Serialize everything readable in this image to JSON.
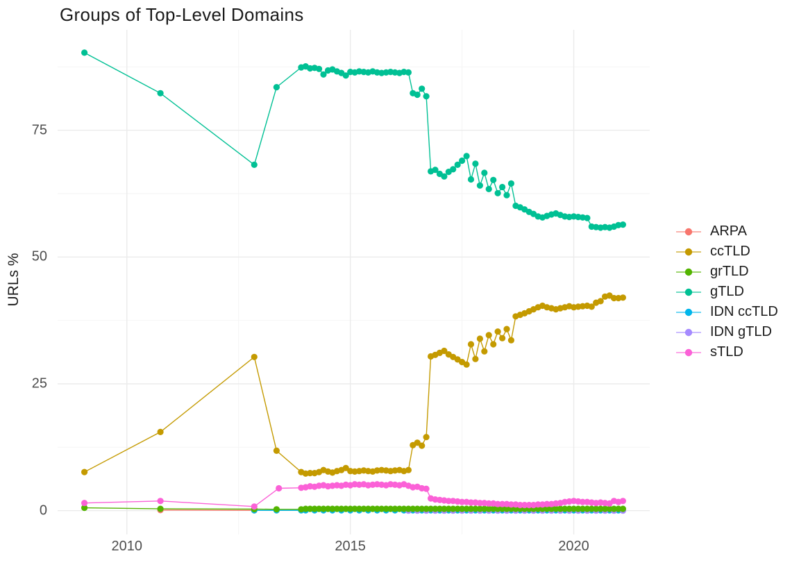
{
  "page": {
    "background": "#ffffff"
  },
  "chart_data": {
    "type": "scatter-line",
    "title": "Groups of Top-Level Domains",
    "xlabel": "",
    "ylabel": "URLs %",
    "x_ticks": [
      2010,
      2015,
      2020
    ],
    "x_minor_ticks": [
      2012.5,
      2017.5
    ],
    "y_ticks": [
      0,
      25,
      50,
      75
    ],
    "y_minor_ticks": [
      12.5,
      37.5,
      62.5,
      87.5
    ],
    "xlim": [
      2008.45,
      2021.7
    ],
    "ylim": [
      -4.7,
      94.8
    ],
    "grid": "major+minor on white, no panel border (ggplot theme_minimal)",
    "grid_major_color": "#EBEBEB",
    "grid_minor_color": "#F3F3F3",
    "tick_label_color": "#4d4d4d",
    "text_color": "#1a1a1a",
    "legend_position": "right",
    "draw_order": [
      "ARPA",
      "IDN ccTLD",
      "IDN gTLD",
      "ccTLD",
      "gTLD",
      "grTLD",
      "sTLD"
    ],
    "series": [
      {
        "name": "ARPA",
        "color": "#F8766D",
        "points": [
          [
            2010.75,
            0.1
          ],
          [
            2012.85,
            0.05
          ]
        ]
      },
      {
        "name": "ccTLD",
        "color": "#C49A00",
        "points": [
          [
            2009.05,
            7.6
          ],
          [
            2010.75,
            15.5
          ],
          [
            2012.85,
            30.3
          ],
          [
            2013.35,
            11.8
          ],
          [
            2013.9,
            7.6
          ],
          [
            2014.0,
            7.3
          ],
          [
            2014.1,
            7.4
          ],
          [
            2014.2,
            7.4
          ],
          [
            2014.3,
            7.6
          ],
          [
            2014.4,
            8.0
          ],
          [
            2014.5,
            7.7
          ],
          [
            2014.6,
            7.5
          ],
          [
            2014.7,
            7.8
          ],
          [
            2014.8,
            8.0
          ],
          [
            2014.9,
            8.4
          ],
          [
            2015.0,
            7.8
          ],
          [
            2015.1,
            7.7
          ],
          [
            2015.2,
            7.8
          ],
          [
            2015.3,
            7.9
          ],
          [
            2015.4,
            7.8
          ],
          [
            2015.5,
            7.7
          ],
          [
            2015.6,
            7.9
          ],
          [
            2015.7,
            8.0
          ],
          [
            2015.8,
            7.9
          ],
          [
            2015.9,
            7.8
          ],
          [
            2016.0,
            7.9
          ],
          [
            2016.1,
            8.0
          ],
          [
            2016.2,
            7.8
          ],
          [
            2016.3,
            8.0
          ],
          [
            2016.4,
            12.9
          ],
          [
            2016.5,
            13.4
          ],
          [
            2016.6,
            12.8
          ],
          [
            2016.7,
            14.5
          ],
          [
            2016.8,
            30.4
          ],
          [
            2016.9,
            30.7
          ],
          [
            2017.0,
            31.1
          ],
          [
            2017.1,
            31.5
          ],
          [
            2017.2,
            30.8
          ],
          [
            2017.3,
            30.3
          ],
          [
            2017.4,
            29.8
          ],
          [
            2017.5,
            29.3
          ],
          [
            2017.6,
            28.8
          ],
          [
            2017.7,
            32.8
          ],
          [
            2017.8,
            29.9
          ],
          [
            2017.9,
            33.9
          ],
          [
            2018.0,
            31.4
          ],
          [
            2018.1,
            34.6
          ],
          [
            2018.2,
            32.8
          ],
          [
            2018.3,
            35.3
          ],
          [
            2018.4,
            34.0
          ],
          [
            2018.5,
            35.8
          ],
          [
            2018.6,
            33.6
          ],
          [
            2018.7,
            38.3
          ],
          [
            2018.8,
            38.6
          ],
          [
            2018.9,
            38.9
          ],
          [
            2019.0,
            39.3
          ],
          [
            2019.1,
            39.7
          ],
          [
            2019.2,
            40.1
          ],
          [
            2019.3,
            40.4
          ],
          [
            2019.4,
            40.1
          ],
          [
            2019.5,
            39.9
          ],
          [
            2019.6,
            39.7
          ],
          [
            2019.7,
            39.9
          ],
          [
            2019.8,
            40.1
          ],
          [
            2019.9,
            40.3
          ],
          [
            2020.0,
            40.1
          ],
          [
            2020.1,
            40.2
          ],
          [
            2020.2,
            40.3
          ],
          [
            2020.3,
            40.4
          ],
          [
            2020.4,
            40.2
          ],
          [
            2020.5,
            41.0
          ],
          [
            2020.6,
            41.3
          ],
          [
            2020.7,
            42.2
          ],
          [
            2020.8,
            42.4
          ],
          [
            2020.9,
            41.9
          ],
          [
            2021.0,
            41.9
          ],
          [
            2021.1,
            42.0
          ]
        ]
      },
      {
        "name": "grTLD",
        "color": "#53B400",
        "points": [
          [
            2009.05,
            0.55
          ],
          [
            2010.75,
            0.35
          ],
          [
            2012.85,
            0.3
          ],
          [
            2013.35,
            0.25
          ],
          [
            2013.9,
            0.25
          ]
        ],
        "spans": [
          {
            "x_start": 2014.0,
            "x_end": 2021.1,
            "x_step": 0.1,
            "y": 0.35
          }
        ]
      },
      {
        "name": "gTLD",
        "color": "#00C094",
        "points": [
          [
            2009.05,
            90.3
          ],
          [
            2010.75,
            82.3
          ],
          [
            2012.85,
            68.2
          ],
          [
            2013.35,
            83.5
          ],
          [
            2013.9,
            87.4
          ],
          [
            2014.0,
            87.6
          ],
          [
            2014.1,
            87.2
          ],
          [
            2014.2,
            87.3
          ],
          [
            2014.3,
            87.1
          ],
          [
            2014.4,
            86.0
          ],
          [
            2014.5,
            86.8
          ],
          [
            2014.6,
            87.0
          ],
          [
            2014.7,
            86.6
          ],
          [
            2014.8,
            86.3
          ],
          [
            2014.9,
            85.8
          ],
          [
            2015.0,
            86.5
          ],
          [
            2015.1,
            86.4
          ],
          [
            2015.2,
            86.6
          ],
          [
            2015.3,
            86.5
          ],
          [
            2015.4,
            86.4
          ],
          [
            2015.5,
            86.6
          ],
          [
            2015.6,
            86.4
          ],
          [
            2015.7,
            86.3
          ],
          [
            2015.8,
            86.4
          ],
          [
            2015.9,
            86.5
          ],
          [
            2016.0,
            86.4
          ],
          [
            2016.1,
            86.3
          ],
          [
            2016.2,
            86.5
          ],
          [
            2016.3,
            86.4
          ],
          [
            2016.4,
            82.3
          ],
          [
            2016.5,
            82.0
          ],
          [
            2016.6,
            83.2
          ],
          [
            2016.7,
            81.7
          ],
          [
            2016.8,
            66.9
          ],
          [
            2016.9,
            67.2
          ],
          [
            2017.0,
            66.4
          ],
          [
            2017.1,
            65.9
          ],
          [
            2017.2,
            66.8
          ],
          [
            2017.3,
            67.3
          ],
          [
            2017.4,
            68.2
          ],
          [
            2017.5,
            69.0
          ],
          [
            2017.6,
            69.9
          ],
          [
            2017.7,
            65.3
          ],
          [
            2017.8,
            68.4
          ],
          [
            2017.9,
            64.1
          ],
          [
            2018.0,
            66.6
          ],
          [
            2018.1,
            63.4
          ],
          [
            2018.2,
            65.2
          ],
          [
            2018.3,
            62.6
          ],
          [
            2018.4,
            63.8
          ],
          [
            2018.5,
            62.2
          ],
          [
            2018.6,
            64.5
          ],
          [
            2018.7,
            60.1
          ],
          [
            2018.8,
            59.8
          ],
          [
            2018.9,
            59.4
          ],
          [
            2019.0,
            58.9
          ],
          [
            2019.1,
            58.5
          ],
          [
            2019.2,
            58.0
          ],
          [
            2019.3,
            57.8
          ],
          [
            2019.4,
            58.1
          ],
          [
            2019.5,
            58.4
          ],
          [
            2019.6,
            58.6
          ],
          [
            2019.7,
            58.3
          ],
          [
            2019.8,
            58.0
          ],
          [
            2019.9,
            57.9
          ],
          [
            2020.0,
            58.0
          ],
          [
            2020.1,
            57.9
          ],
          [
            2020.2,
            57.8
          ],
          [
            2020.3,
            57.7
          ],
          [
            2020.4,
            56.0
          ],
          [
            2020.5,
            55.9
          ],
          [
            2020.6,
            55.8
          ],
          [
            2020.7,
            55.9
          ],
          [
            2020.8,
            55.8
          ],
          [
            2020.9,
            56.0
          ],
          [
            2021.0,
            56.3
          ],
          [
            2021.1,
            56.4
          ]
        ]
      },
      {
        "name": "IDN ccTLD",
        "color": "#00B6EB",
        "points": [
          [
            2012.85,
            0.05
          ],
          [
            2013.35,
            0.05
          ],
          [
            2013.9,
            0.05
          ]
        ],
        "spans": [
          {
            "x_start": 2014.0,
            "x_end": 2021.1,
            "x_step": 0.2,
            "y": 0.05
          }
        ]
      },
      {
        "name": "IDN gTLD",
        "color": "#A58AFF",
        "points": [],
        "spans": [
          {
            "x_start": 2016.3,
            "x_end": 2021.1,
            "x_step": 0.2,
            "y": 0.0
          }
        ]
      },
      {
        "name": "sTLD",
        "color": "#FB61D7",
        "points": [
          [
            2009.05,
            1.5
          ],
          [
            2010.75,
            1.9
          ],
          [
            2012.85,
            0.8
          ],
          [
            2013.4,
            4.4
          ],
          [
            2013.9,
            4.5
          ],
          [
            2014.0,
            4.6
          ],
          [
            2014.1,
            4.8
          ],
          [
            2014.2,
            4.7
          ],
          [
            2014.3,
            4.9
          ],
          [
            2014.4,
            5.0
          ],
          [
            2014.5,
            4.8
          ],
          [
            2014.6,
            4.9
          ],
          [
            2014.7,
            5.0
          ],
          [
            2014.8,
            4.9
          ],
          [
            2014.9,
            5.1
          ],
          [
            2015.0,
            5.0
          ],
          [
            2015.1,
            5.2
          ],
          [
            2015.2,
            5.1
          ],
          [
            2015.3,
            5.2
          ],
          [
            2015.4,
            5.0
          ],
          [
            2015.5,
            5.1
          ],
          [
            2015.6,
            5.2
          ],
          [
            2015.7,
            5.1
          ],
          [
            2015.8,
            5.0
          ],
          [
            2015.9,
            5.2
          ],
          [
            2016.0,
            5.1
          ],
          [
            2016.1,
            5.0
          ],
          [
            2016.2,
            5.2
          ],
          [
            2016.3,
            4.9
          ],
          [
            2016.4,
            4.6
          ],
          [
            2016.5,
            4.7
          ],
          [
            2016.6,
            4.4
          ],
          [
            2016.7,
            4.3
          ],
          [
            2016.8,
            2.4
          ],
          [
            2016.9,
            2.2
          ],
          [
            2017.0,
            2.1
          ],
          [
            2017.1,
            2.0
          ],
          [
            2017.2,
            1.9
          ],
          [
            2017.3,
            1.9
          ],
          [
            2017.4,
            1.8
          ],
          [
            2017.5,
            1.7
          ],
          [
            2017.6,
            1.7
          ],
          [
            2017.7,
            1.6
          ],
          [
            2017.8,
            1.6
          ],
          [
            2017.9,
            1.5
          ],
          [
            2018.0,
            1.5
          ],
          [
            2018.1,
            1.4
          ],
          [
            2018.2,
            1.4
          ],
          [
            2018.3,
            1.3
          ],
          [
            2018.4,
            1.3
          ],
          [
            2018.5,
            1.3
          ],
          [
            2018.6,
            1.2
          ],
          [
            2018.7,
            1.2
          ],
          [
            2018.8,
            1.1
          ],
          [
            2018.9,
            1.1
          ],
          [
            2019.0,
            1.1
          ],
          [
            2019.1,
            1.1
          ],
          [
            2019.2,
            1.2
          ],
          [
            2019.3,
            1.2
          ],
          [
            2019.4,
            1.3
          ],
          [
            2019.5,
            1.3
          ],
          [
            2019.6,
            1.4
          ],
          [
            2019.7,
            1.5
          ],
          [
            2019.8,
            1.7
          ],
          [
            2019.9,
            1.8
          ],
          [
            2020.0,
            1.9
          ],
          [
            2020.1,
            1.8
          ],
          [
            2020.2,
            1.7
          ],
          [
            2020.3,
            1.7
          ],
          [
            2020.4,
            1.6
          ],
          [
            2020.5,
            1.5
          ],
          [
            2020.6,
            1.6
          ],
          [
            2020.7,
            1.5
          ],
          [
            2020.8,
            1.4
          ],
          [
            2020.9,
            1.9
          ],
          [
            2021.0,
            1.7
          ],
          [
            2021.1,
            1.9
          ]
        ]
      }
    ]
  }
}
